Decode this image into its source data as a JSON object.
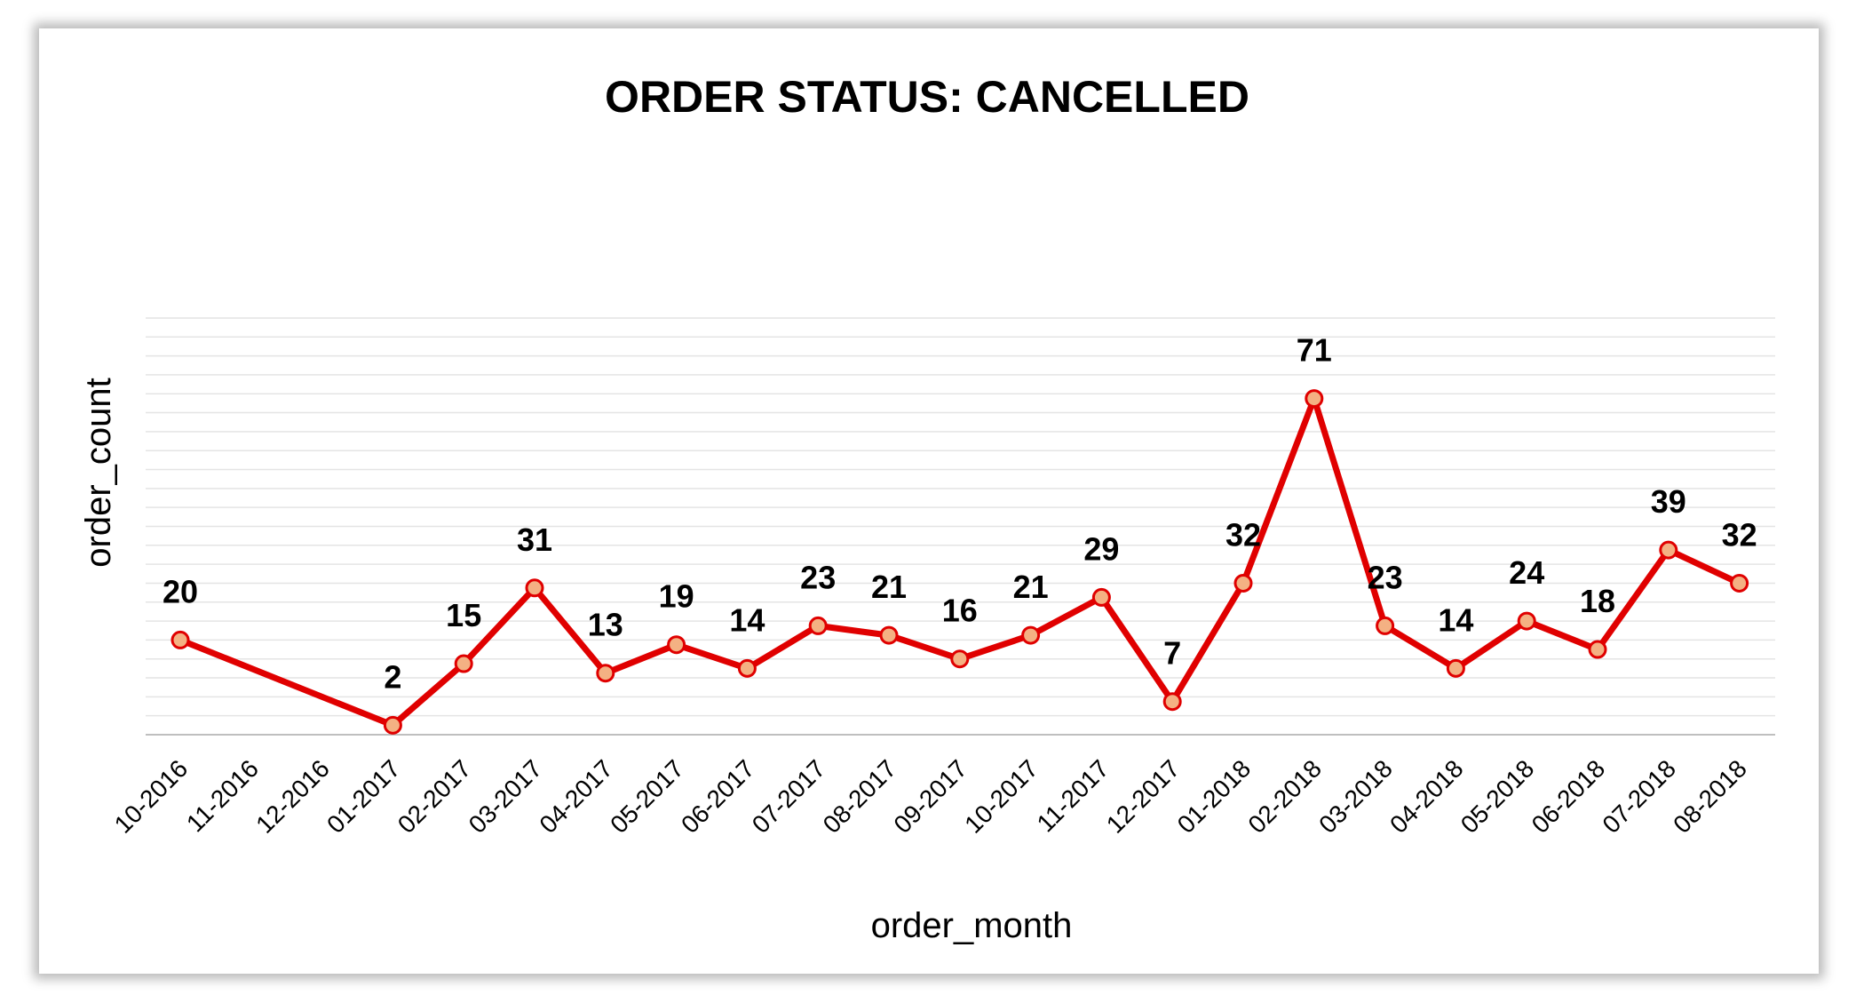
{
  "chart_data": {
    "type": "line",
    "title": "ORDER STATUS: CANCELLED",
    "xlabel": "order_month",
    "ylabel": "order_count",
    "categories": [
      "10-2016",
      "11-2016",
      "12-2016",
      "01-2017",
      "02-2017",
      "03-2017",
      "04-2017",
      "05-2017",
      "06-2017",
      "07-2017",
      "08-2017",
      "09-2017",
      "10-2017",
      "11-2017",
      "12-2017",
      "01-2018",
      "02-2018",
      "03-2018",
      "04-2018",
      "05-2018",
      "06-2018",
      "07-2018",
      "08-2018"
    ],
    "series": [
      {
        "values": [
          20,
          null,
          null,
          2,
          15,
          31,
          13,
          19,
          14,
          23,
          21,
          16,
          21,
          29,
          7,
          32,
          71,
          23,
          14,
          24,
          18,
          39,
          32
        ],
        "color": "#e00000",
        "marker_fill": "#f4b183"
      }
    ],
    "ylim": [
      0,
      80
    ],
    "y_tick_labels_shown": false,
    "grid": true,
    "legend": "none"
  }
}
